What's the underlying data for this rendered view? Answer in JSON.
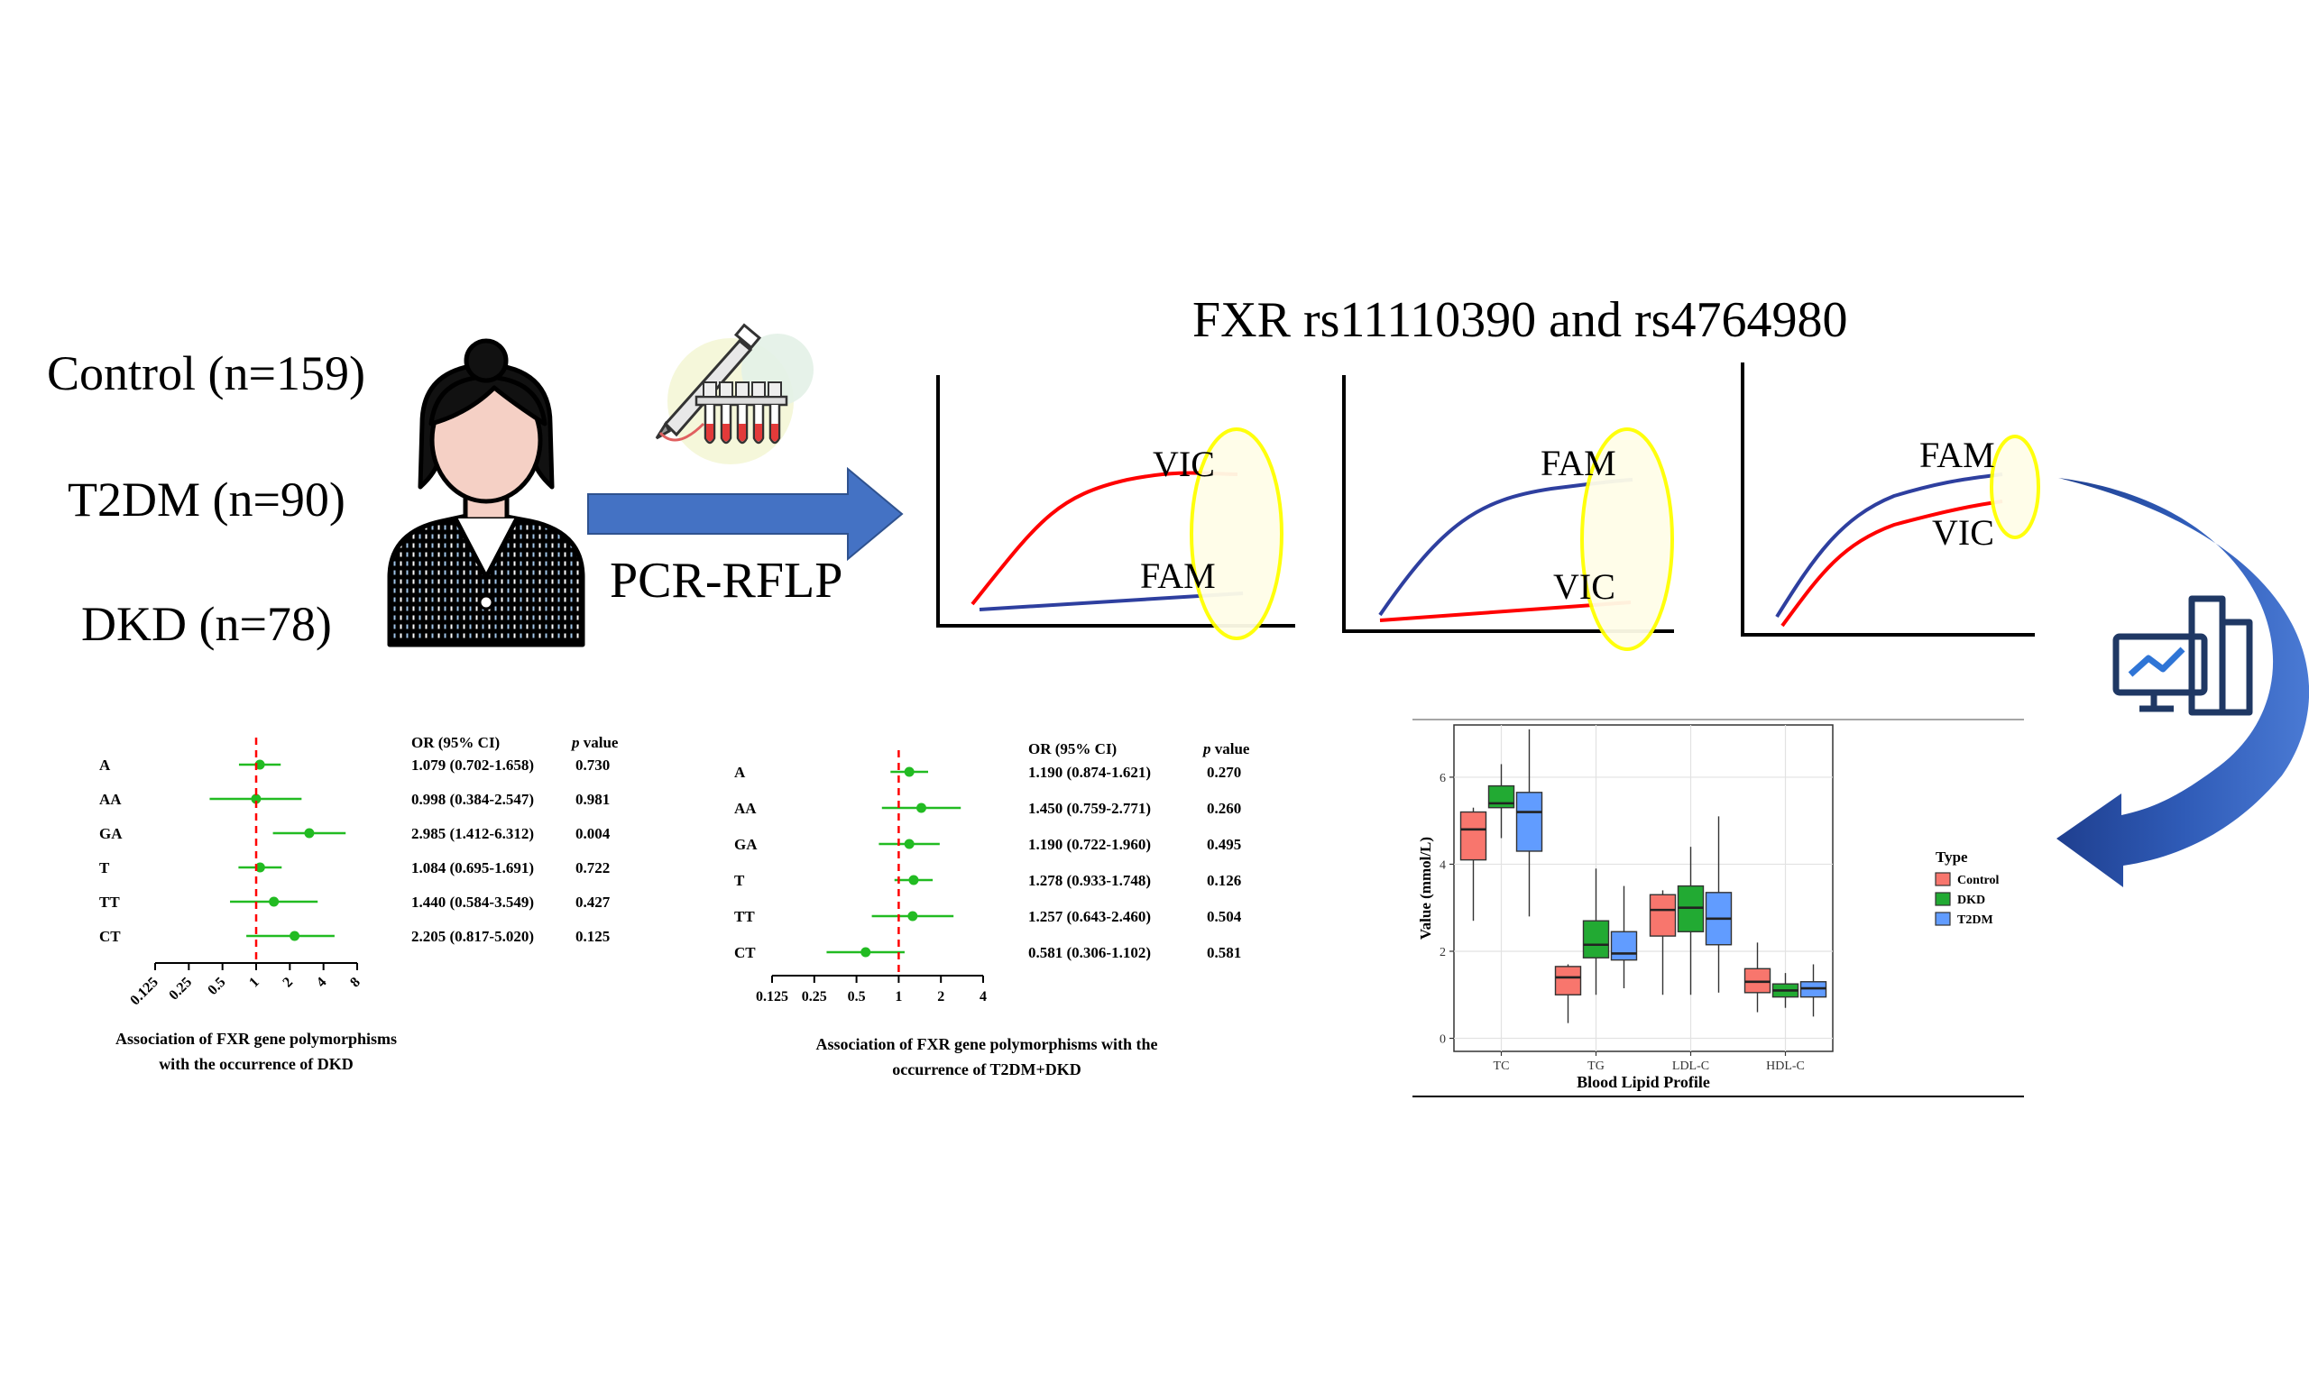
{
  "groups": {
    "control": "Control (n=159)",
    "t2dm": "T2DM (n=90)",
    "dkd": "DKD (n=78)"
  },
  "method_label": "PCR-RFLP",
  "snp_title": "FXR rs11110390 and rs4764980",
  "amp_panels": [
    {
      "top_label": "VIC",
      "bottom_label": "FAM"
    },
    {
      "top_label": "FAM",
      "bottom_label": "VIC"
    },
    {
      "top_label": "FAM",
      "bottom_label": "VIC"
    }
  ],
  "colors": {
    "arrow_blue": "#4472c4",
    "vic_red": "#ff0000",
    "fam_blue": "#2e3f9f",
    "highlight_yellow": "#ffff00",
    "forest_green": "#22bb22",
    "ref_line_red": "#ff0000",
    "boxplot_control": "#f8766d",
    "boxplot_dkd": "#22aa33",
    "boxplot_t2dm": "#619cff"
  },
  "icons": [
    "patient-icon",
    "pipette-tubes-icon",
    "analytics-monitor-icon",
    "curved-arrow-icon"
  ],
  "forest_dkd": {
    "header_or": "OR (95% CI)",
    "header_p_italic": "p",
    "header_p_rest": " value",
    "xticks": [
      "0.125",
      "0.25",
      "0.5",
      "1",
      "2",
      "4",
      "8"
    ],
    "rows": [
      {
        "label": "A",
        "or": "1.079 (0.702-1.658)",
        "p": "0.730",
        "est": 1.079,
        "lo": 0.702,
        "hi": 1.658
      },
      {
        "label": "AA",
        "or": "0.998 (0.384-2.547)",
        "p": "0.981",
        "est": 0.998,
        "lo": 0.384,
        "hi": 2.547
      },
      {
        "label": "GA",
        "or": "2.985 (1.412-6.312)",
        "p": "0.004",
        "est": 2.985,
        "lo": 1.412,
        "hi": 6.312
      },
      {
        "label": "T",
        "or": "1.084 (0.695-1.691)",
        "p": "0.722",
        "est": 1.084,
        "lo": 0.695,
        "hi": 1.691
      },
      {
        "label": "TT",
        "or": "1.440 (0.584-3.549)",
        "p": "0.427",
        "est": 1.44,
        "lo": 0.584,
        "hi": 3.549
      },
      {
        "label": "CT",
        "or": "2.205 (0.817-5.020)",
        "p": "0.125",
        "est": 2.205,
        "lo": 0.817,
        "hi": 5.02
      }
    ],
    "caption_line1": "Association of FXR gene polymorphisms",
    "caption_line2": "with the occurrence of DKD"
  },
  "forest_t2dm_dkd": {
    "header_or": "OR (95% CI)",
    "header_p_italic": "p",
    "header_p_rest": " value",
    "xticks": [
      "0.125",
      "0.25",
      "0.5",
      "1",
      "2",
      "4"
    ],
    "rows": [
      {
        "label": "A",
        "or": "1.190 (0.874-1.621)",
        "p": "0.270",
        "est": 1.19,
        "lo": 0.874,
        "hi": 1.621
      },
      {
        "label": "AA",
        "or": "1.450 (0.759-2.771)",
        "p": "0.260",
        "est": 1.45,
        "lo": 0.759,
        "hi": 2.771
      },
      {
        "label": "GA",
        "or": "1.190 (0.722-1.960)",
        "p": "0.495",
        "est": 1.19,
        "lo": 0.722,
        "hi": 1.96
      },
      {
        "label": "T",
        "or": "1.278 (0.933-1.748)",
        "p": "0.126",
        "est": 1.278,
        "lo": 0.933,
        "hi": 1.748
      },
      {
        "label": "TT",
        "or": "1.257 (0.643-2.460)",
        "p": "0.504",
        "est": 1.257,
        "lo": 0.643,
        "hi": 2.46
      },
      {
        "label": "CT",
        "or": "0.581 (0.306-1.102)",
        "p": "0.581",
        "est": 0.581,
        "lo": 0.306,
        "hi": 1.102
      }
    ],
    "caption_line1": "Association of FXR gene polymorphisms with the",
    "caption_line2": "occurrence of T2DM+DKD"
  },
  "chart_data": {
    "type": "boxplot",
    "xlabel": "Blood Lipid Profile",
    "ylabel": "Value (mmol/L)",
    "yticks": [
      "0",
      "2",
      "4",
      "6"
    ],
    "ylim": [
      -0.3,
      7.2
    ],
    "grid": true,
    "legend_title": "Type",
    "legend_placement": "right",
    "categories": [
      "TC",
      "TG",
      "LDL-C",
      "HDL-C"
    ],
    "series": [
      {
        "name": "Control",
        "color": "#f8766d",
        "boxes": [
          {
            "min": 2.7,
            "q1": 4.1,
            "median": 4.8,
            "q3": 5.2,
            "max": 5.3
          },
          {
            "min": 0.35,
            "q1": 1.0,
            "median": 1.4,
            "q3": 1.65,
            "max": 1.7
          },
          {
            "min": 1.0,
            "q1": 2.35,
            "median": 2.95,
            "q3": 3.3,
            "max": 3.4
          },
          {
            "min": 0.6,
            "q1": 1.05,
            "median": 1.3,
            "q3": 1.6,
            "max": 2.2
          }
        ]
      },
      {
        "name": "DKD",
        "color": "#22aa33",
        "boxes": [
          {
            "min": 4.6,
            "q1": 5.3,
            "median": 5.4,
            "q3": 5.8,
            "max": 6.3
          },
          {
            "min": 1.0,
            "q1": 1.85,
            "median": 2.15,
            "q3": 2.7,
            "max": 3.9
          },
          {
            "min": 1.0,
            "q1": 2.45,
            "median": 3.0,
            "q3": 3.5,
            "max": 4.4
          },
          {
            "min": 0.7,
            "q1": 0.95,
            "median": 1.1,
            "q3": 1.25,
            "max": 1.5
          }
        ]
      },
      {
        "name": "T2DM",
        "color": "#619cff",
        "boxes": [
          {
            "min": 2.8,
            "q1": 4.3,
            "median": 5.2,
            "q3": 5.65,
            "max": 7.1
          },
          {
            "min": 1.15,
            "q1": 1.8,
            "median": 1.95,
            "q3": 2.45,
            "max": 3.5
          },
          {
            "min": 1.05,
            "q1": 2.15,
            "median": 2.75,
            "q3": 3.35,
            "max": 5.1
          },
          {
            "min": 0.5,
            "q1": 0.95,
            "median": 1.15,
            "q3": 1.3,
            "max": 1.7
          }
        ]
      }
    ]
  }
}
